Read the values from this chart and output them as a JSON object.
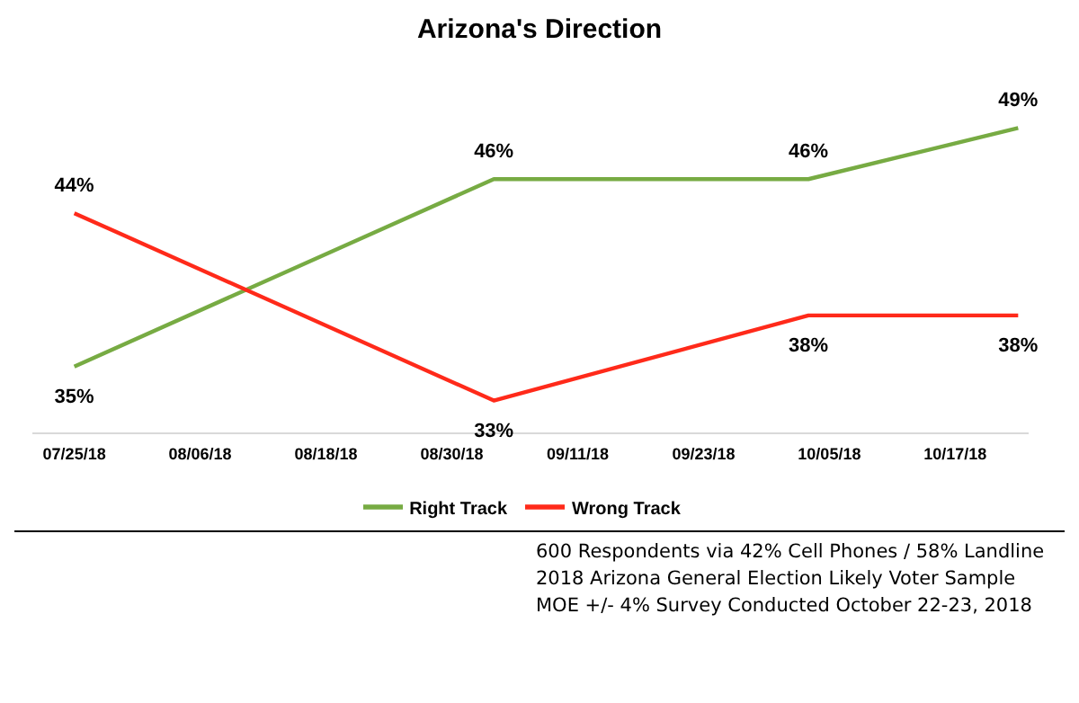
{
  "chart_data": {
    "type": "line",
    "title": "Arizona's Direction",
    "x": [
      "2018-07-25",
      "2018-09-03",
      "2018-10-03",
      "2018-10-23"
    ],
    "series": [
      {
        "name": "Right Track",
        "color": "#77ab43",
        "values": [
          35,
          46,
          46,
          49
        ],
        "value_labels": [
          "35%",
          "46%",
          "46%",
          "49%"
        ]
      },
      {
        "name": "Wrong Track",
        "color": "#ff2a1a",
        "values": [
          44,
          33,
          38,
          38
        ],
        "value_labels": [
          "44%",
          "33%",
          "38%",
          "38%"
        ]
      }
    ],
    "xlim": [
      "2018-07-21",
      "2018-10-24"
    ],
    "xticks": [
      {
        "value": "2018-07-25",
        "label": "07/25/18"
      },
      {
        "value": "2018-08-06",
        "label": "08/06/18"
      },
      {
        "value": "2018-08-18",
        "label": "08/18/18"
      },
      {
        "value": "2018-08-30",
        "label": "08/30/18"
      },
      {
        "value": "2018-09-11",
        "label": "09/11/18"
      },
      {
        "value": "2018-09-23",
        "label": "09/23/18"
      },
      {
        "value": "2018-10-05",
        "label": "10/05/18"
      },
      {
        "value": "2018-10-17",
        "label": "10/17/18"
      }
    ],
    "legend": "bottom",
    "marker": "none",
    "line_style": "solid",
    "tick_labels": "x",
    "annotations": [
      "600 Respondents via 42% Cell Phones / 58% Landline",
      "2018 Arizona General Election Likely Voter Sample",
      "MOE +/- 4% Survey Conducted October 22-23, 2018"
    ]
  }
}
